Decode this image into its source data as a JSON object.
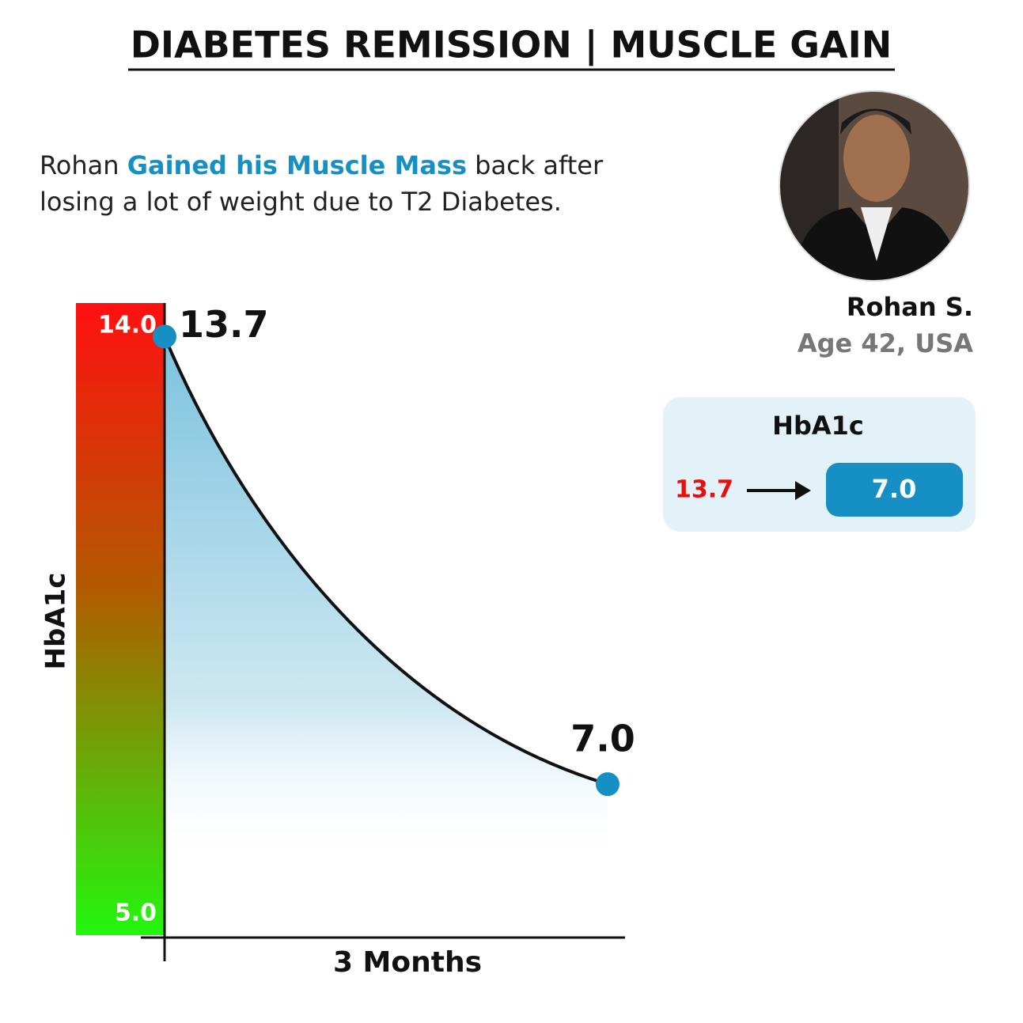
{
  "header": {
    "title": "DIABETES REMISSION | MUSCLE GAIN"
  },
  "description": [
    "Rohan ",
    "Gained his Muscle Mass",
    " back after losing a lot of weight due to T2 Diabetes."
  ],
  "profile": {
    "name": "Rohan S.",
    "details": "Age 42, USA"
  },
  "card": {
    "label": "HbA1c",
    "before": "13.7",
    "after": "7.0"
  },
  "chart_data": {
    "type": "line",
    "ylabel": "HbA1c",
    "xlabel": "3 Months",
    "categories": [
      null,
      null
    ],
    "values": [
      13.7,
      7.0
    ],
    "value_labels": [
      "13.7",
      "7.0"
    ],
    "color": "#111111",
    "marker_color": "#168fc4",
    "ylim": [
      5,
      14
    ],
    "yticks": [
      {
        "value": 5,
        "label": "5.0"
      },
      {
        "value": 14,
        "label": "14.0"
      }
    ]
  }
}
